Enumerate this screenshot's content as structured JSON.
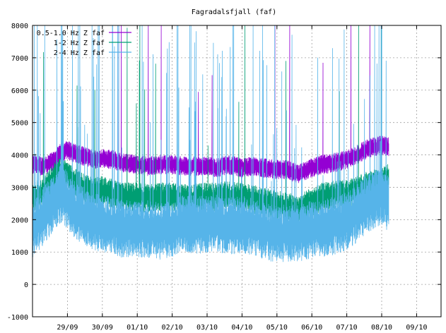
{
  "chart_data": {
    "type": "line",
    "title": "Fagradalsfjall (faf)",
    "xlabel": "",
    "ylabel": "",
    "ylim": [
      -1000,
      8000
    ],
    "yticks": [
      -1000,
      0,
      1000,
      2000,
      3000,
      4000,
      5000,
      6000,
      7000,
      8000
    ],
    "xlim": [
      0,
      11.7
    ],
    "xticks": [
      {
        "label": "29/09",
        "x": 1
      },
      {
        "label": "30/09",
        "x": 2
      },
      {
        "label": "01/10",
        "x": 3
      },
      {
        "label": "02/10",
        "x": 4
      },
      {
        "label": "03/10",
        "x": 5
      },
      {
        "label": "04/10",
        "x": 6
      },
      {
        "label": "05/10",
        "x": 7
      },
      {
        "label": "06/10",
        "x": 8
      },
      {
        "label": "07/10",
        "x": 9
      },
      {
        "label": "08/10",
        "x": 10
      },
      {
        "label": "09/10",
        "x": 11
      }
    ],
    "grid": true,
    "legend_position": "top-left",
    "series": [
      {
        "name": "0.5-1.0 Hz Z faf",
        "color": "#9400d3",
        "x": [
          0,
          0.3,
          0.6,
          0.8,
          1.0,
          1.2,
          1.5,
          1.8,
          2.0,
          2.3,
          2.6,
          3.0,
          3.3,
          3.6,
          4.0,
          4.3,
          4.6,
          5.0,
          5.3,
          5.6,
          6.0,
          6.3,
          6.6,
          7.0,
          7.3,
          7.6,
          8.0,
          8.3,
          8.6,
          9.0,
          9.3,
          9.6,
          10.0,
          10.2
        ],
        "values": [
          3700,
          3650,
          3800,
          4050,
          4150,
          4050,
          3950,
          3850,
          3900,
          3850,
          3750,
          3700,
          3650,
          3700,
          3700,
          3650,
          3650,
          3650,
          3600,
          3700,
          3600,
          3650,
          3600,
          3550,
          3550,
          3400,
          3600,
          3700,
          3750,
          3850,
          4000,
          4200,
          4300,
          4250
        ]
      },
      {
        "name": "1-2 Hz Z faf",
        "color": "#009e73",
        "x": [
          0,
          0.3,
          0.6,
          0.8,
          1.0,
          1.2,
          1.5,
          1.8,
          2.0,
          2.3,
          2.6,
          3.0,
          3.3,
          3.6,
          4.0,
          4.3,
          4.6,
          5.0,
          5.3,
          5.6,
          6.0,
          6.3,
          6.6,
          7.0,
          7.3,
          7.6,
          8.0,
          8.3,
          8.6,
          9.0,
          9.3,
          9.6,
          10.0,
          10.2
        ],
        "values": [
          2700,
          2850,
          3300,
          3500,
          3350,
          3150,
          2950,
          2850,
          2900,
          2800,
          2700,
          2700,
          2650,
          2700,
          2700,
          2650,
          2650,
          2700,
          2700,
          2750,
          2700,
          2650,
          2550,
          2450,
          2400,
          2300,
          2550,
          2700,
          2750,
          2800,
          2900,
          3050,
          3150,
          3300
        ]
      },
      {
        "name": "2-4 Hz Z faf",
        "color": "#56b4e9",
        "x": [
          0,
          0.3,
          0.6,
          0.8,
          1.0,
          1.2,
          1.5,
          1.8,
          2.0,
          2.3,
          2.6,
          3.0,
          3.3,
          3.6,
          4.0,
          4.3,
          4.6,
          5.0,
          5.3,
          5.6,
          6.0,
          6.3,
          6.6,
          7.0,
          7.3,
          7.6,
          8.0,
          8.3,
          8.6,
          9.0,
          9.3,
          9.6,
          10.0,
          10.2
        ],
        "values": [
          1700,
          2100,
          2500,
          2800,
          2600,
          2300,
          2100,
          1900,
          1900,
          1800,
          1700,
          1750,
          1700,
          1650,
          1750,
          1900,
          1850,
          1850,
          1900,
          1800,
          1850,
          1800,
          1650,
          1550,
          1600,
          1550,
          1700,
          1750,
          1800,
          1950,
          2200,
          2500,
          2700,
          2500
        ]
      }
    ]
  }
}
